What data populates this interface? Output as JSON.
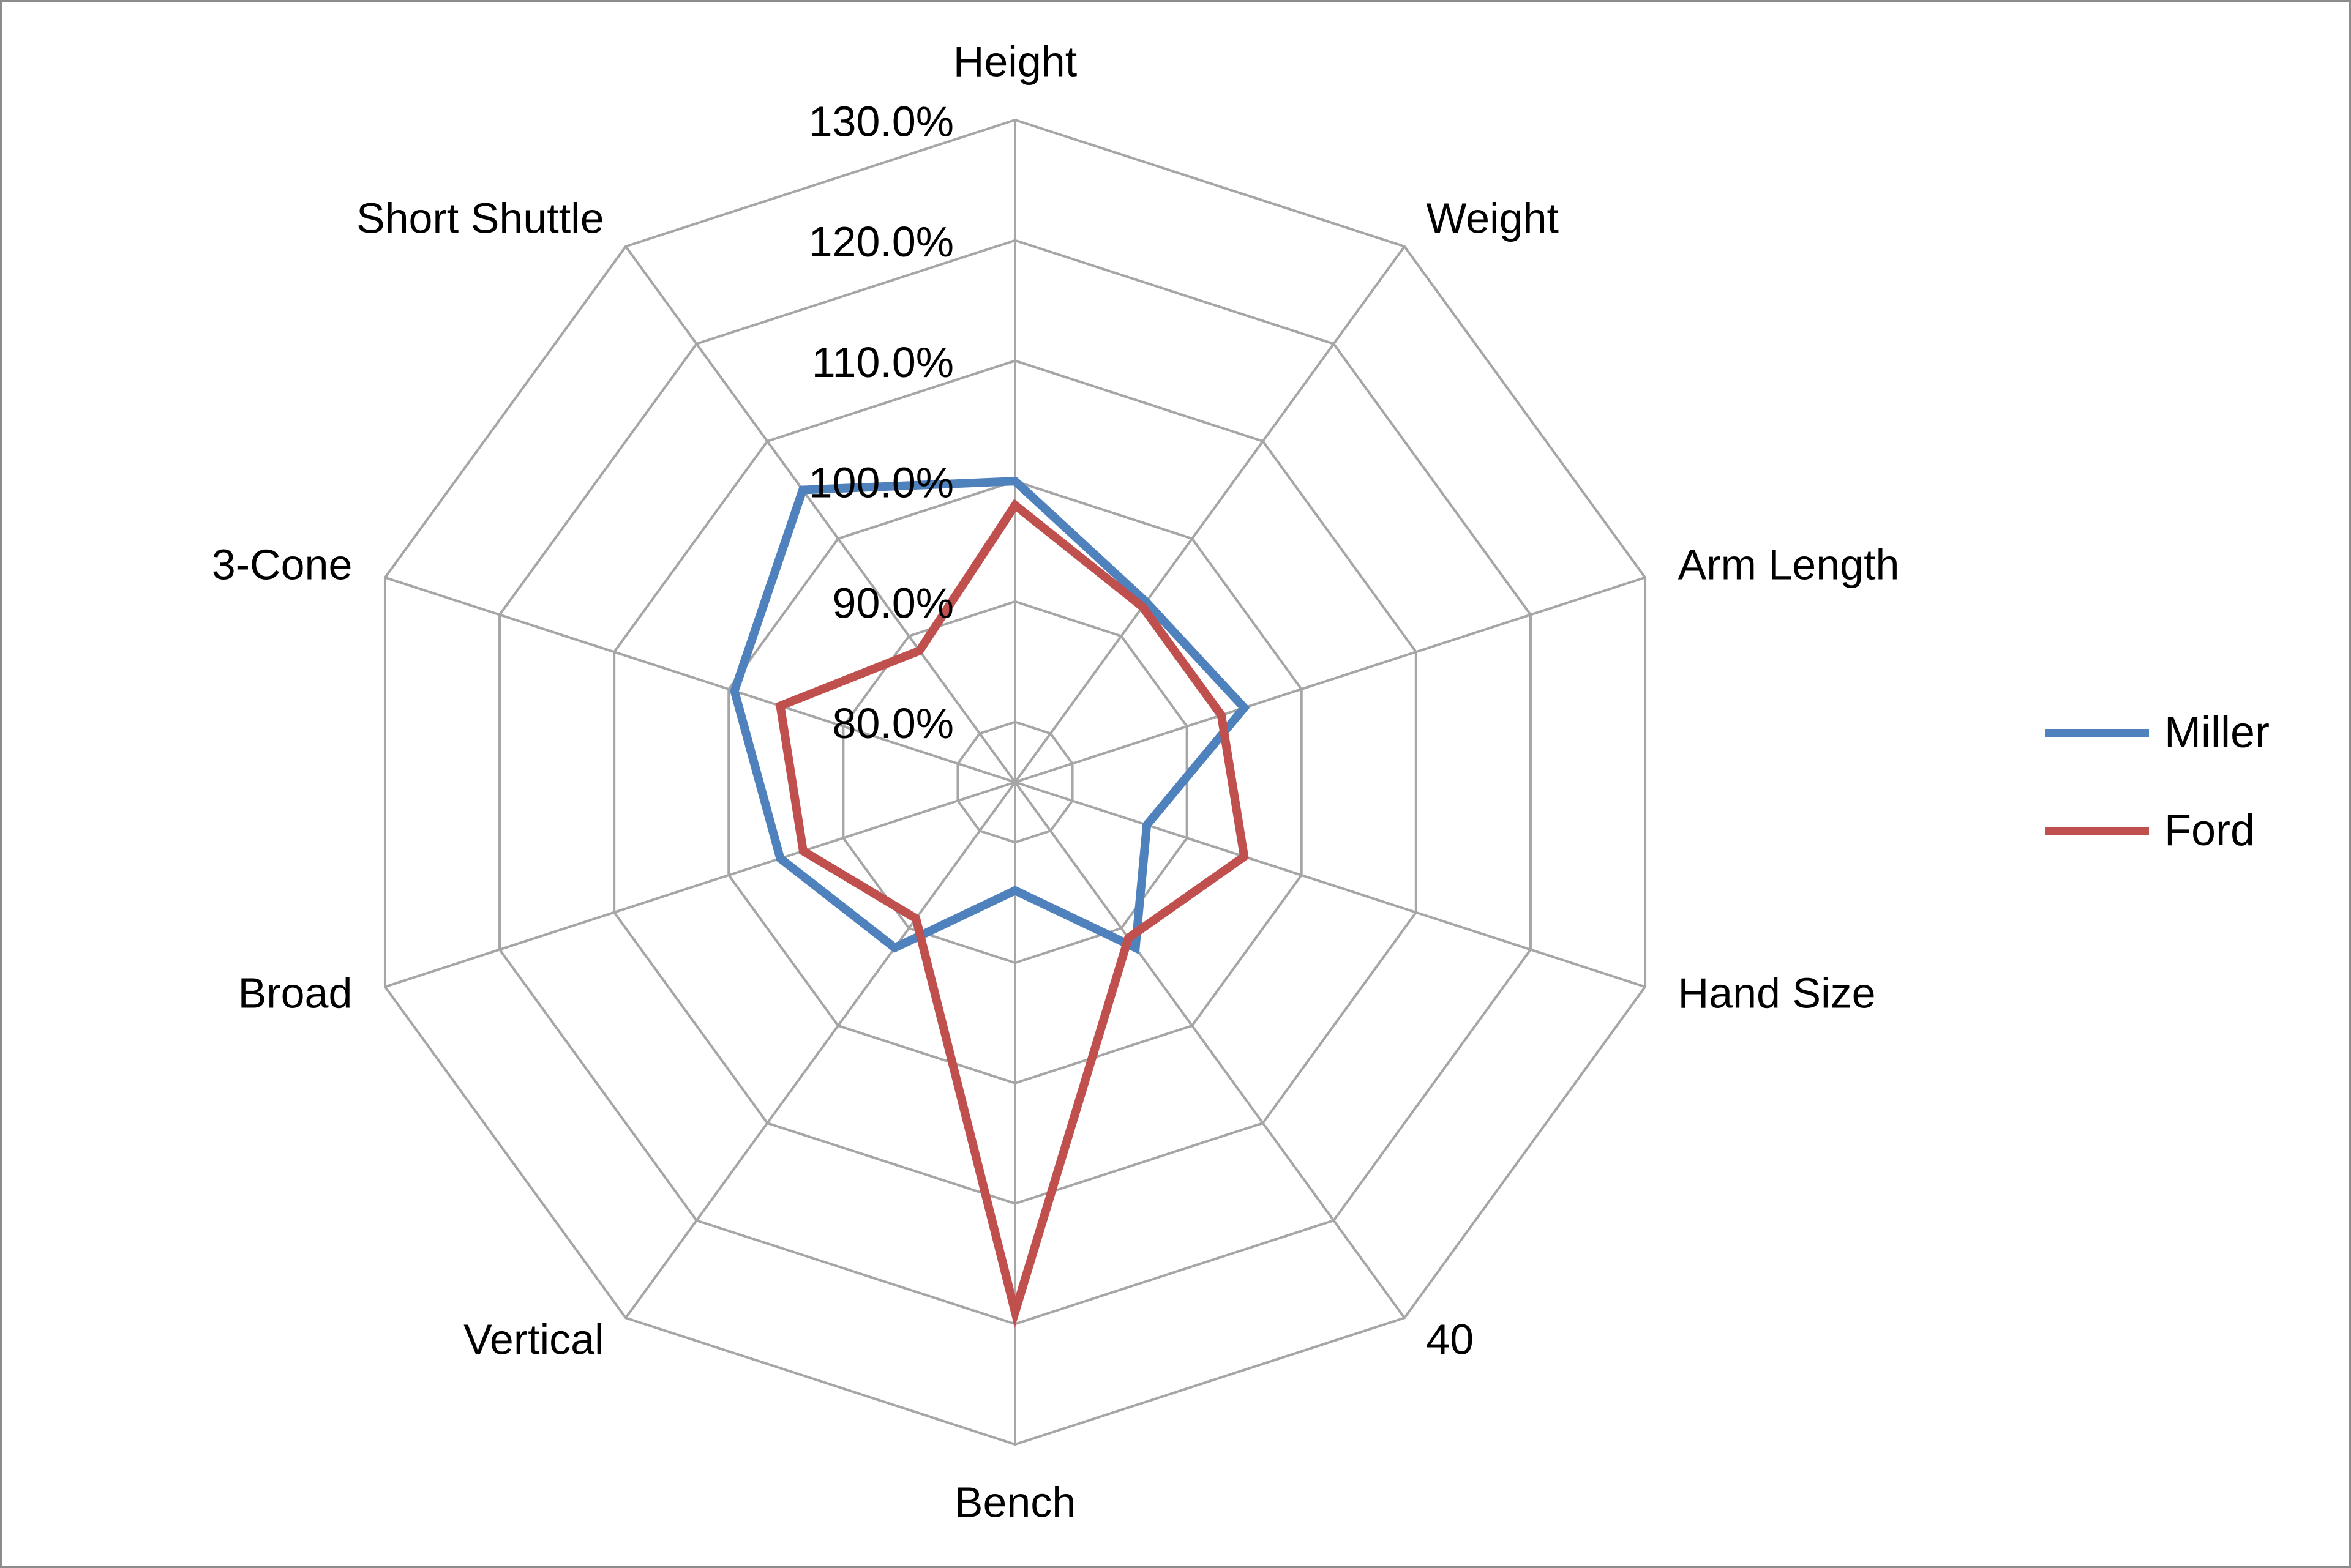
{
  "chart_data": {
    "type": "radar",
    "categories": [
      "Height",
      "Weight",
      "Arm Length",
      "Hand Size",
      "40",
      "Bench",
      "Vertical",
      "Broad",
      "3-Cone",
      "Short Shuttle"
    ],
    "rlim": [
      0.75,
      1.3
    ],
    "ticks": [
      0.8,
      0.9,
      1.0,
      1.1,
      1.2,
      1.3
    ],
    "tick_labels": [
      "80.0%",
      "90.0%",
      "100.0%",
      "110.0%",
      "120.0%",
      "130.0%"
    ],
    "series": [
      {
        "name": "Miller",
        "color": "#4f81bd",
        "values": [
          1.0,
          0.935,
          0.95,
          0.865,
          0.92,
          0.84,
          0.92,
          0.955,
          0.995,
          1.05
        ]
      },
      {
        "name": "Ford",
        "color": "#c0504d",
        "values": [
          0.98,
          0.93,
          0.93,
          0.95,
          0.91,
          1.19,
          0.89,
          0.935,
          0.955,
          0.885
        ]
      }
    ],
    "legend_position": "right",
    "grid": true
  }
}
